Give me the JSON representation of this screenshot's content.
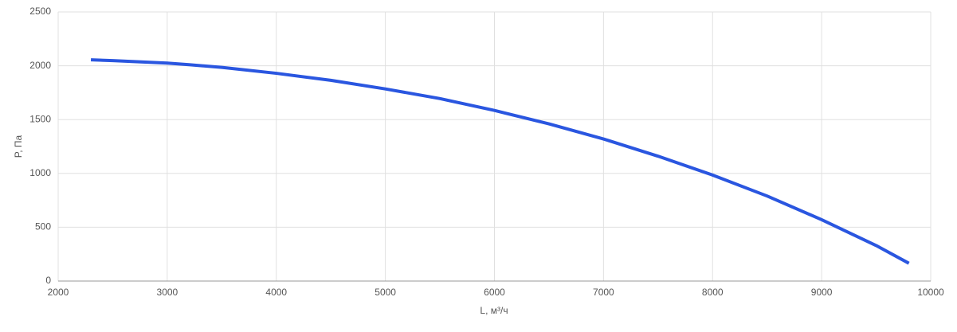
{
  "chart_data": {
    "type": "line",
    "x_label": "L, м³/ч",
    "y_label": "P, Па",
    "x": [
      2300,
      2500,
      3000,
      3200,
      3500,
      4000,
      4500,
      5000,
      5500,
      6000,
      6500,
      7000,
      7500,
      8000,
      8500,
      9000,
      9500,
      9800
    ],
    "series": [
      {
        "name": "P",
        "color": "#2a56e0",
        "values": [
          2055,
          2048,
          2025,
          2010,
          1985,
          1930,
          1865,
          1785,
          1695,
          1585,
          1460,
          1320,
          1160,
          985,
          790,
          570,
          330,
          165
        ]
      }
    ],
    "xlim": [
      2000,
      10000
    ],
    "xticks": [
      2000,
      3000,
      4000,
      5000,
      6000,
      7000,
      8000,
      9000,
      10000
    ],
    "ylim": [
      0,
      2500
    ],
    "yticks": [
      0,
      500,
      1000,
      1500,
      2000,
      2500
    ],
    "grid": true
  }
}
